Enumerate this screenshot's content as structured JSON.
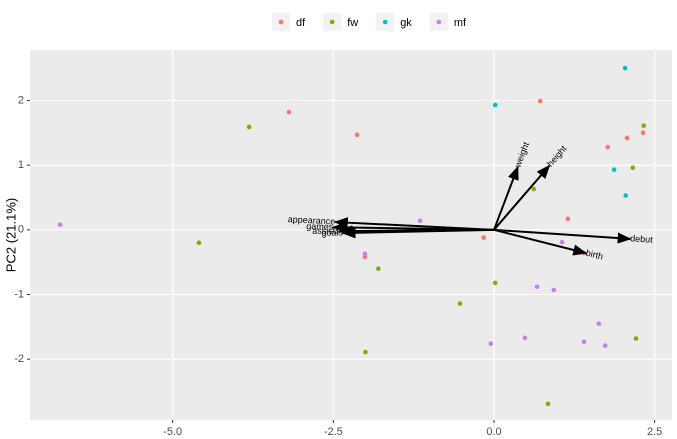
{
  "chart_data": {
    "type": "scatter",
    "ylabel": "PC2 (21.1%)",
    "xlim": [
      -7.22,
      2.77
    ],
    "ylim": [
      -2.94,
      2.78
    ],
    "xticks": [
      {
        "value": -5,
        "label": "-5.0"
      },
      -2.5,
      {
        "value": 0,
        "label": "0.0"
      },
      2.5
    ],
    "yticks": [
      -2,
      -1,
      0,
      1,
      2
    ],
    "grid": true,
    "legend": "top",
    "series": [
      {
        "name": "df",
        "color": "#F8766D",
        "x": [
          -3.19,
          -2.13,
          0.72,
          1.77,
          2.07,
          2.32,
          1.15,
          -0.16,
          -2.01,
          1.4
        ],
        "values": [
          1.82,
          1.47,
          1.99,
          1.28,
          1.42,
          1.5,
          0.17,
          -0.12,
          -0.42,
          -0.36
        ]
      },
      {
        "name": "fw",
        "color": "#7CAE00",
        "x": [
          -3.81,
          -4.59,
          -1.8,
          -2.0,
          -0.53,
          0.02,
          0.62,
          2.16,
          2.33,
          2.21,
          0.84
        ],
        "values": [
          1.59,
          -0.2,
          -0.6,
          -1.89,
          -1.14,
          -0.82,
          0.63,
          0.96,
          1.61,
          -1.68,
          -2.69
        ]
      },
      {
        "name": "gk",
        "color": "#00BFC4",
        "x": [
          0.02,
          2.04,
          1.87,
          2.05
        ],
        "values": [
          1.93,
          2.5,
          0.93,
          0.53
        ]
      },
      {
        "name": "mf",
        "color": "#C77CFF",
        "x": [
          -6.75,
          -1.15,
          -2.01,
          0.67,
          0.93,
          1.06,
          0.48,
          -0.05,
          1.4,
          1.63,
          1.73
        ],
        "values": [
          0.08,
          0.14,
          -0.37,
          -0.88,
          -0.93,
          -0.19,
          -1.67,
          -1.76,
          -1.73,
          -1.45,
          -1.79
        ]
      }
    ],
    "loadings": [
      {
        "name": "weight",
        "x": 0.37,
        "y": 0.97
      },
      {
        "name": "height",
        "x": 0.86,
        "y": 0.99
      },
      {
        "name": "debut",
        "x": 2.12,
        "y": -0.14
      },
      {
        "name": "birth",
        "x": 1.43,
        "y": -0.36
      },
      {
        "name": "appearance",
        "x": -2.47,
        "y": 0.12
      },
      {
        "name": "games",
        "x": -2.5,
        "y": 0.04
      },
      {
        "name": "assists",
        "x": -2.4,
        "y": -0.02
      },
      {
        "name": "goals",
        "x": -2.35,
        "y": -0.05
      }
    ]
  }
}
